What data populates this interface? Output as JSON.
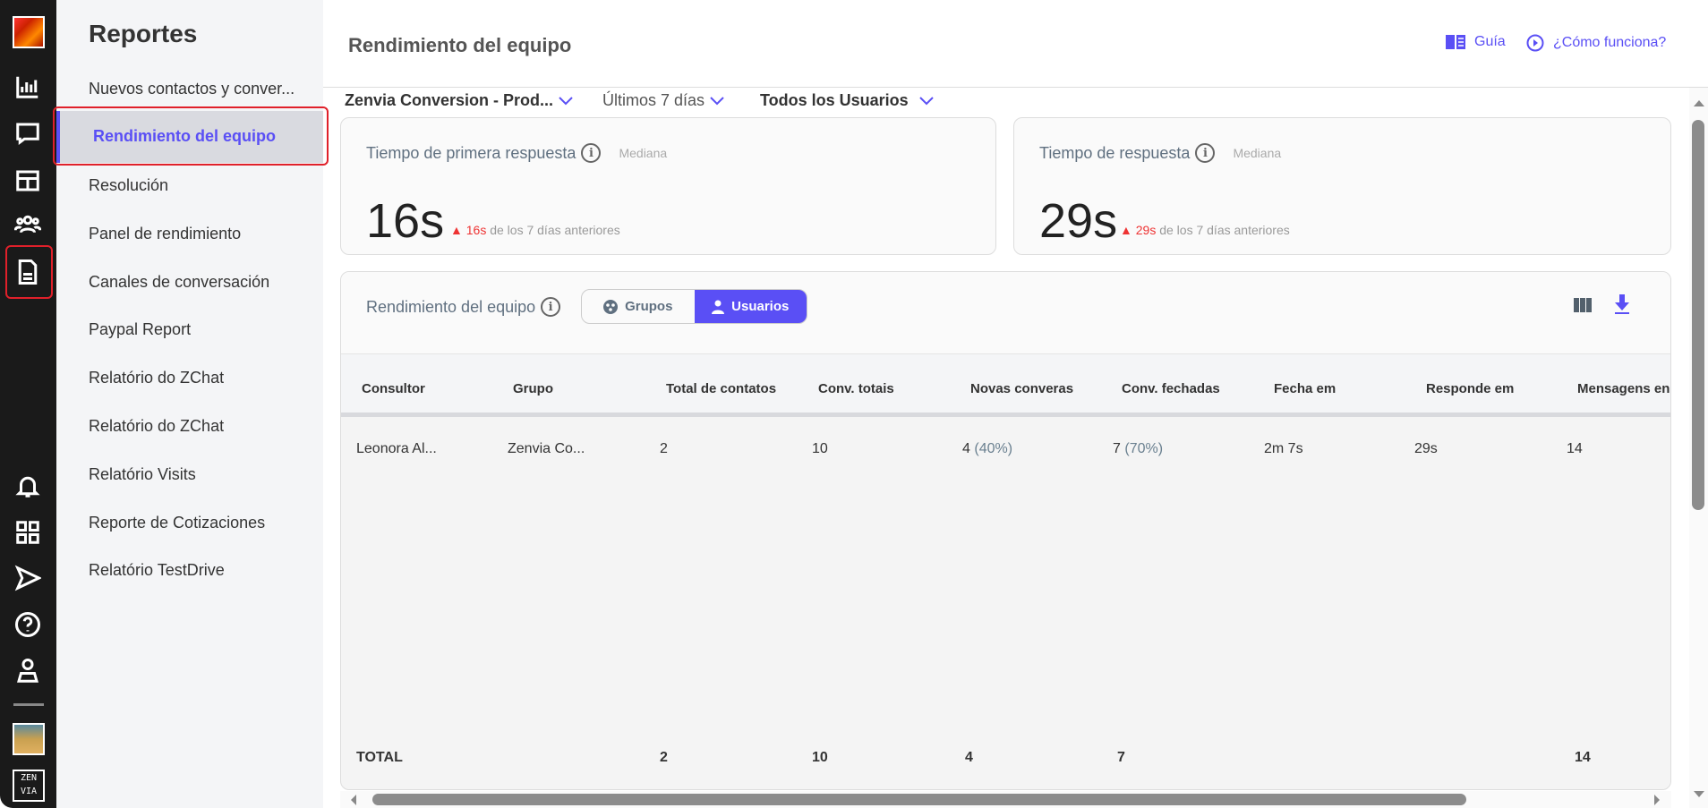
{
  "rail": {
    "icons": [
      "reports-chart-icon",
      "chat-icon",
      "table-icon",
      "team-icon",
      "report-document-icon",
      "bell-icon",
      "apps-grid-icon",
      "send-icon",
      "help-icon",
      "user-icon"
    ]
  },
  "sidebar": {
    "title": "Reportes",
    "items": [
      {
        "label": "Nuevos contactos y conver..."
      },
      {
        "label": "Rendimiento del equipo",
        "active": true
      },
      {
        "label": "Resolución"
      },
      {
        "label": "Panel de rendimiento"
      },
      {
        "label": "Canales de conversación"
      },
      {
        "label": "Paypal Report"
      },
      {
        "label": "Relatório do ZChat"
      },
      {
        "label": "Relatório do ZChat"
      },
      {
        "label": "Relatório Visits"
      },
      {
        "label": "Reporte de Cotizaciones"
      },
      {
        "label": "Relatório TestDrive"
      }
    ]
  },
  "header": {
    "title": "Rendimiento del equipo",
    "guide": "Guía",
    "how": "¿Cómo funciona?"
  },
  "filters": {
    "account": "Zenvia Conversion - Prod...",
    "period": "Últimos 7 días",
    "users": "Todos los Usuarios"
  },
  "cards": [
    {
      "label": "Tiempo de primera respuesta",
      "sub": "Mediana",
      "value": "16s",
      "delta": "16s",
      "compare": "de los 7 días anteriores"
    },
    {
      "label": "Tiempo de respuesta",
      "sub": "Mediana",
      "value": "29s",
      "delta": "29s",
      "compare": "de los 7 días anteriores"
    }
  ],
  "panel": {
    "title": "Rendimiento del equipo",
    "toggle": {
      "groups": "Grupos",
      "users": "Usuarios",
      "selected": "Usuarios"
    }
  },
  "table": {
    "columns": [
      "Consultor",
      "Grupo",
      "Total de contatos",
      "Conv. totais",
      "Novas converas",
      "Conv. fechadas",
      "Fecha em",
      "Responde em",
      "Mensagens en"
    ],
    "rows": [
      {
        "consultor": "Leonora Al...",
        "grupo": "Zenvia Co...",
        "total": "2",
        "conv": "10",
        "novas": "4",
        "novas_pct": "(40%)",
        "fechadas": "7",
        "fechadas_pct": "(70%)",
        "fecha": "2m 7s",
        "responde": "29s",
        "mensagens": "14"
      }
    ],
    "totals": {
      "label": "TOTAL",
      "total": "2",
      "conv": "10",
      "novas": "4",
      "fechadas": "7",
      "mensagens": "14"
    }
  },
  "colors": {
    "accent": "#5a4ff5",
    "delta_up": "#e33333",
    "rail": "#1a1a1a"
  }
}
